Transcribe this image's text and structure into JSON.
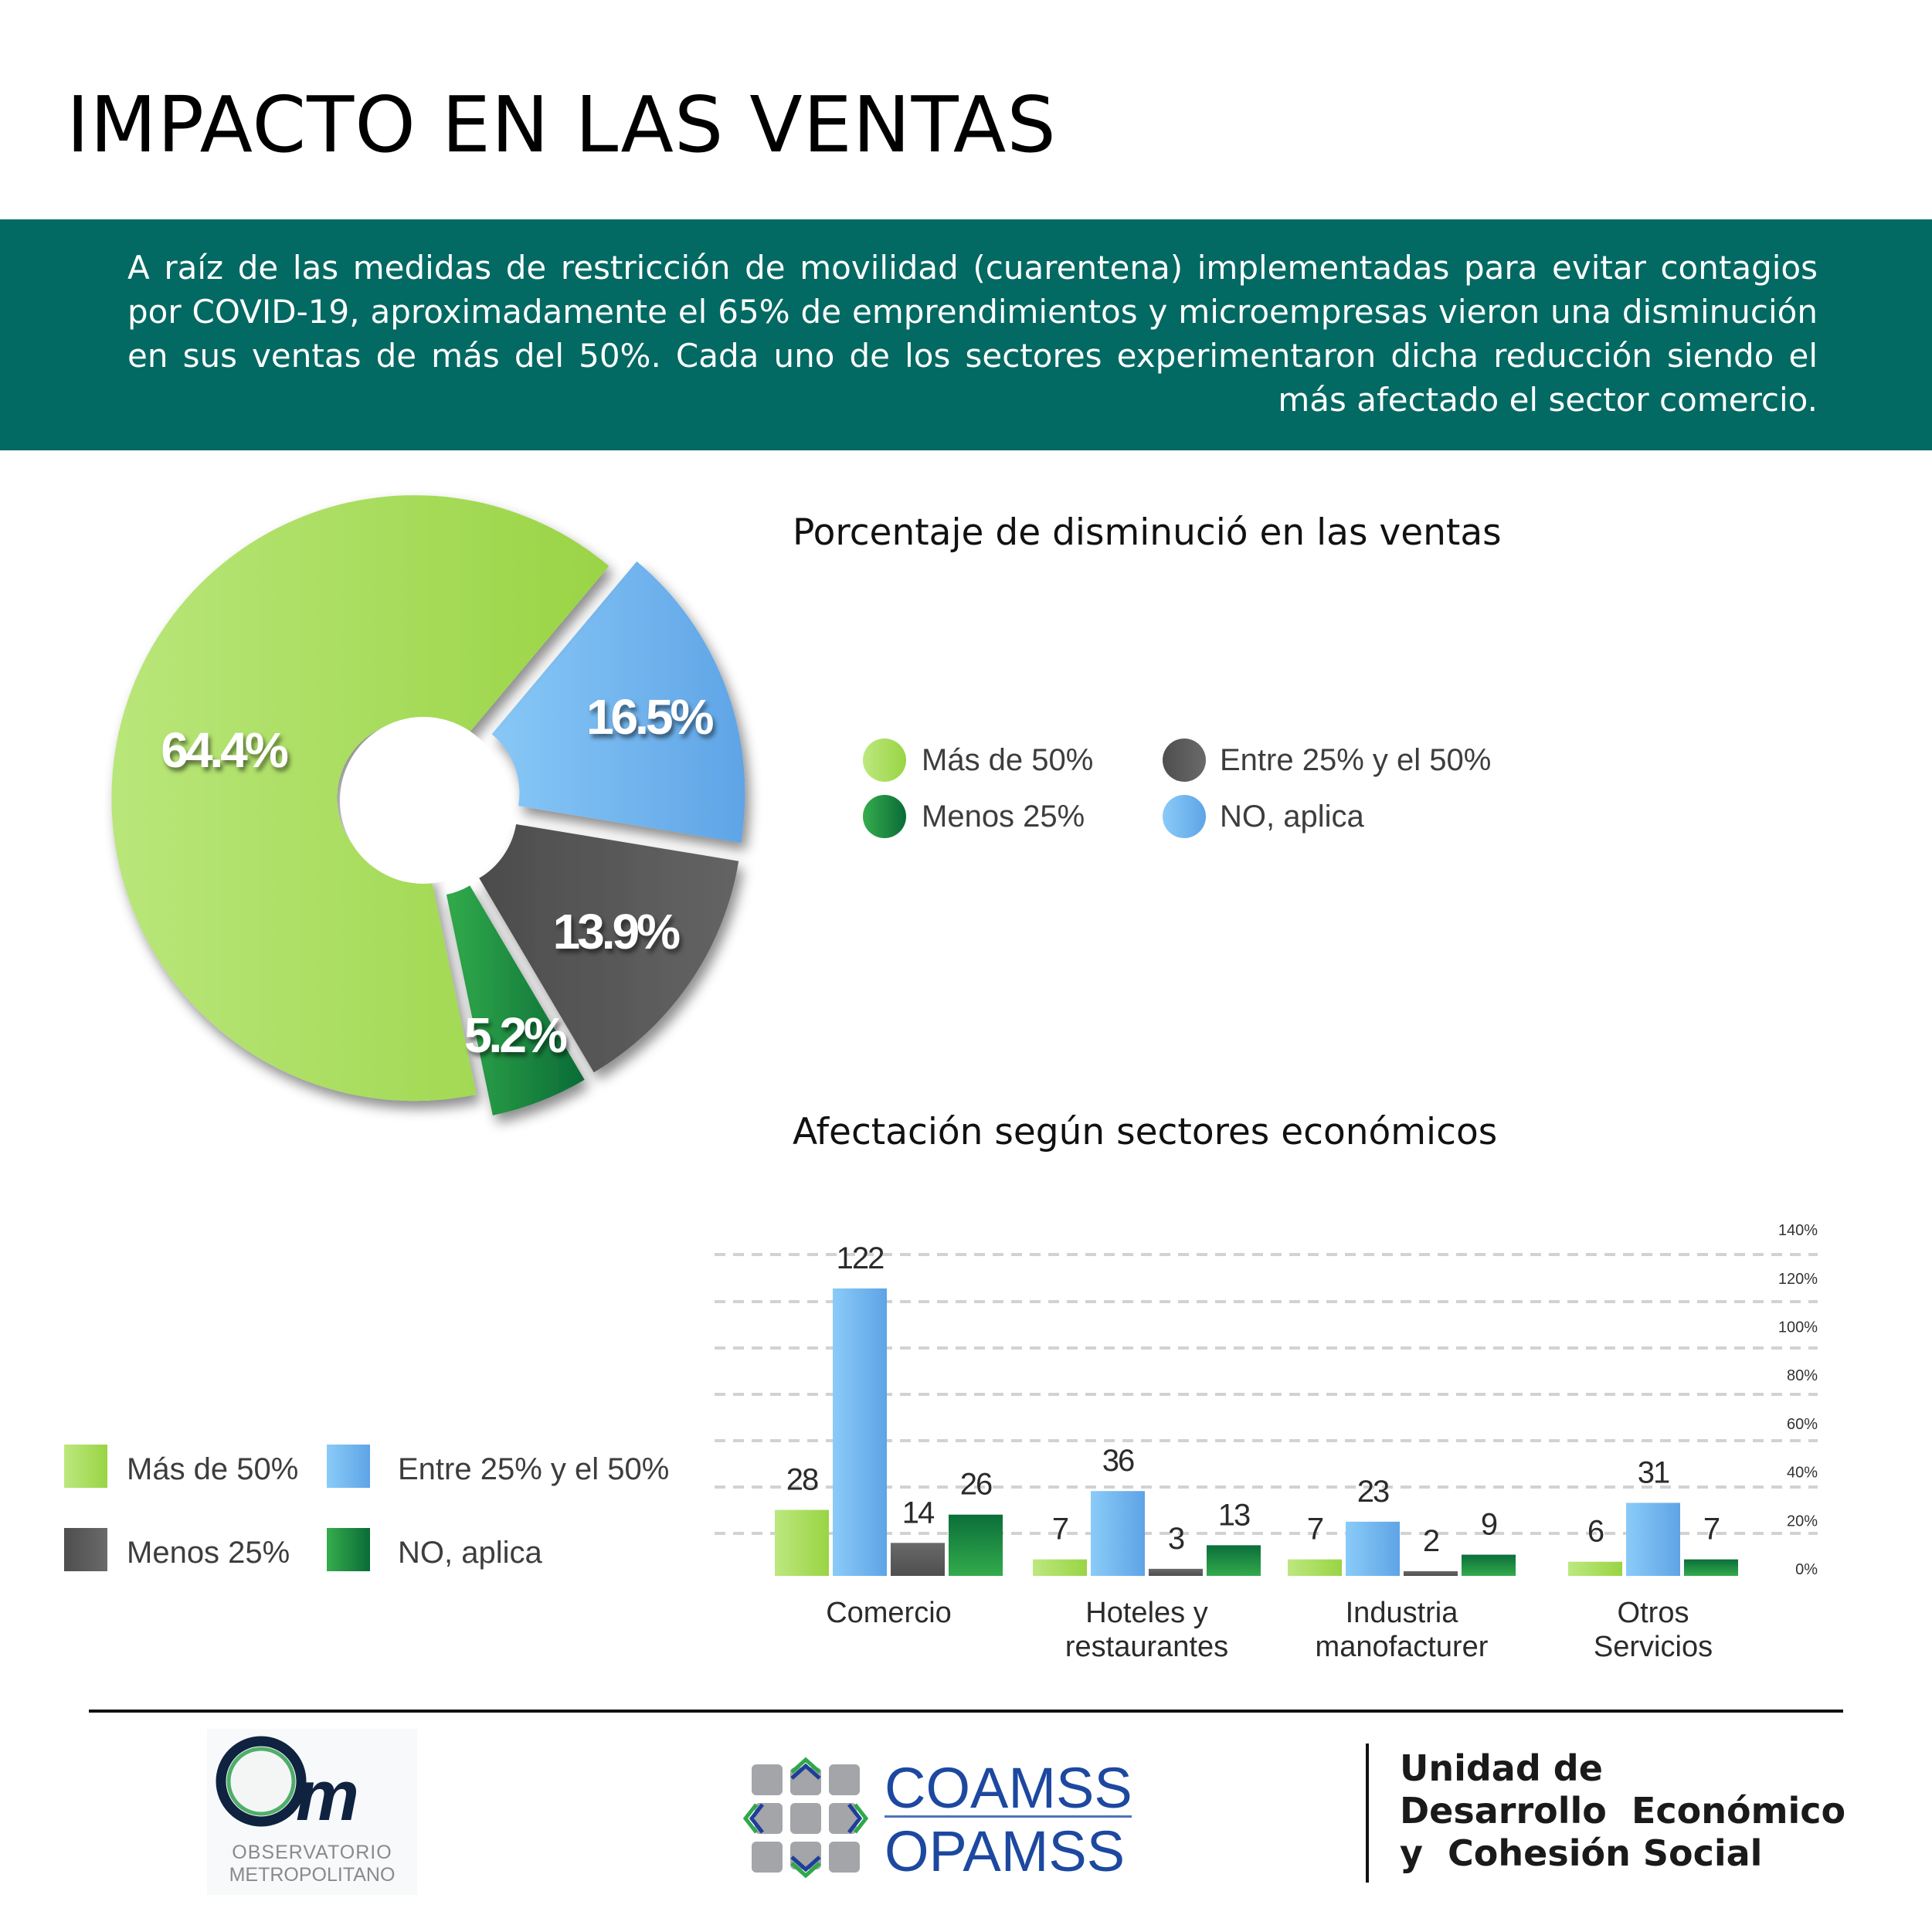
{
  "header": {
    "title": "IMPACTO EN LAS VENTAS",
    "banner_text": "A raíz de las medidas de restricción de movilidad (cuarentena) implementadas para evitar contagios por COVID-19, aproximadamente el 65% de emprendimientos y microempresas vieron una disminución en sus ventas de más del 50%. Cada uno de los sectores experimentaron dicha reducción siendo el más afectado el sector comercio.",
    "banner_color": "#036963"
  },
  "colors": {
    "mas_50": "#a8dc5c",
    "entre_25_50_blue": "#74b8f0",
    "gray": "#5a5a5a",
    "dark_green": "#1e8c44"
  },
  "pie_legend": [
    {
      "label": "Más de 50%",
      "color": "light-green"
    },
    {
      "label": "Entre 25% y el 50%",
      "color": "gray"
    },
    {
      "label": "Menos 25%",
      "color": "dark-green"
    },
    {
      "label": "NO, aplica",
      "color": "blue"
    }
  ],
  "bar_legend": [
    {
      "label": "Más de 50%",
      "color": "light-green"
    },
    {
      "label": "Entre 25% y el 50%",
      "color": "blue"
    },
    {
      "label": "Menos 25%",
      "color": "gray"
    },
    {
      "label": "NO, aplica",
      "color": "dark-green"
    }
  ],
  "chart_data": [
    {
      "type": "pie",
      "title": "Porcentaje de disminució en las ventas",
      "donut": true,
      "slices": [
        {
          "label": "Más de 50%",
          "value": 64.4,
          "display": "64.4%",
          "color": "light-green"
        },
        {
          "label": "NO, aplica",
          "value": 16.5,
          "display": "16.5%",
          "color": "blue"
        },
        {
          "label": "Entre 25% y el 50%",
          "value": 13.9,
          "display": "13.9%",
          "color": "gray"
        },
        {
          "label": "Menos 25%",
          "value": 5.2,
          "display": "5.2%",
          "color": "dark-green"
        }
      ],
      "legend_position": "right"
    },
    {
      "type": "bar",
      "title": "Afectación según sectores económicos",
      "categories": [
        "Comercio",
        "Hoteles y restaurantes",
        "Industria manofacturer",
        "Otros Servicios"
      ],
      "category_lines": [
        [
          "Comercio"
        ],
        [
          "Hoteles y",
          "restaurantes"
        ],
        [
          "Industria",
          "manofacturer"
        ],
        [
          "Otros",
          "Servicios"
        ]
      ],
      "series": [
        {
          "name": "Más de 50%",
          "color": "light-green",
          "values": [
            28,
            7,
            7,
            6
          ]
        },
        {
          "name": "Entre 25% y el 50%",
          "color": "blue",
          "values": [
            122,
            36,
            23,
            31
          ]
        },
        {
          "name": "Menos 25%",
          "color": "gray",
          "values": [
            14,
            3,
            2,
            null
          ]
        },
        {
          "name": "NO, aplica",
          "color": "dark-green",
          "values": [
            26,
            13,
            9,
            7
          ]
        }
      ],
      "y_axis": {
        "position": "right",
        "ticks": [
          "0%",
          "20%",
          "40%",
          "60%",
          "80%",
          "100%",
          "120%",
          "140%"
        ],
        "range": [
          0,
          140
        ]
      },
      "grid": "dashed horizontal",
      "legend_position": "left"
    }
  ],
  "footer": {
    "om_logo_line1": "OBSERVATORIO",
    "om_logo_line2": "METROPOLITANO",
    "coamss_line1": "COAMSS",
    "coamss_line2": "OPAMSS",
    "unidad": "Unidad de\nDesarrollo  Económico\ny  Cohesión Social"
  }
}
